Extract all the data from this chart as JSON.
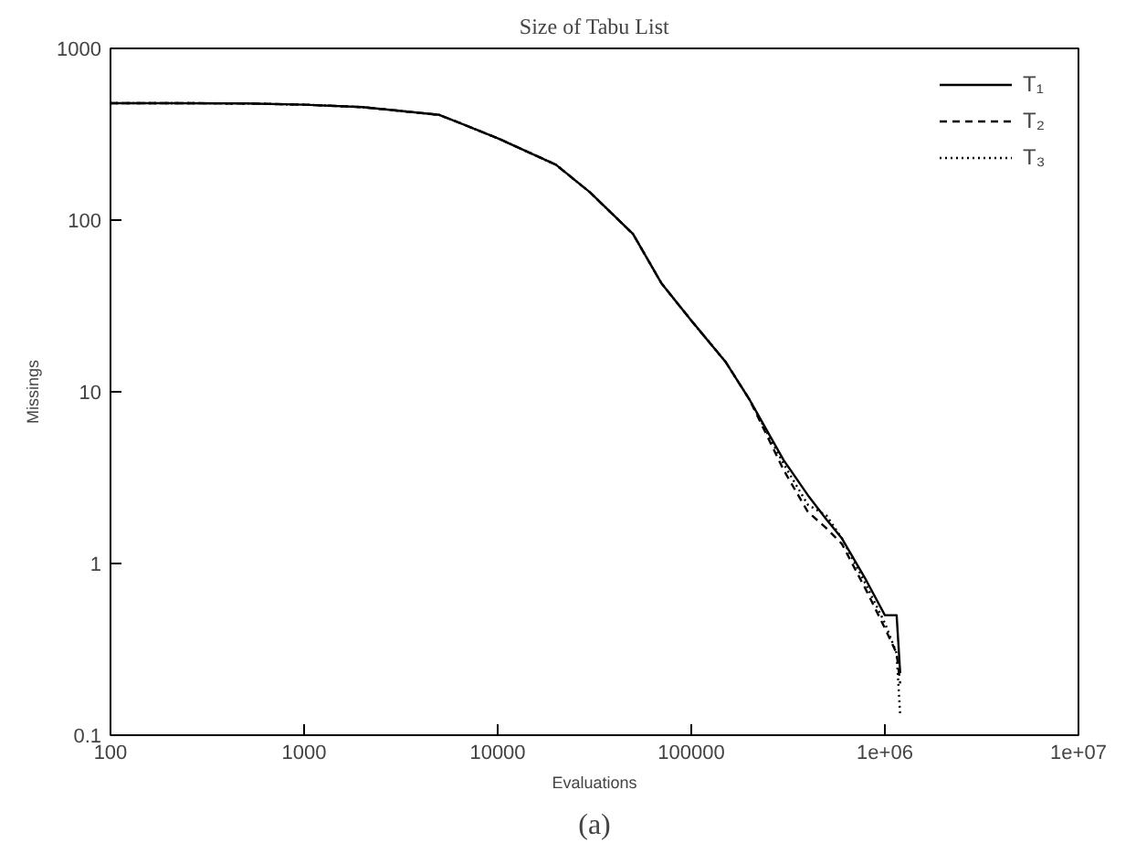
{
  "chart_data": {
    "type": "line",
    "title": "Size of Tabu List",
    "xlabel": "Evaluations",
    "ylabel": "Missings",
    "annotations": [
      "(a)"
    ],
    "log": "xy",
    "grid": false,
    "legend": "top right",
    "xlim": [
      100,
      10000000
    ],
    "ylim": [
      0.1,
      1000
    ],
    "xticks": [
      100,
      1000,
      10000,
      100000,
      {
        "value": 1000000,
        "label": "1e+06"
      },
      {
        "value": 10000000,
        "label": "1e+07"
      }
    ],
    "yticks": [
      0.1,
      1,
      10,
      100,
      1000
    ],
    "x": [
      100,
      200,
      500,
      1000,
      2000,
      5000,
      10000,
      20000,
      30000,
      50000,
      70000,
      100000,
      150000,
      200000,
      300000,
      400000,
      500000,
      600000,
      800000,
      1000000,
      1150000,
      1200000
    ],
    "series": [
      {
        "name": "T₁",
        "color": "#000000",
        "line_style": "solid",
        "values": [
          480,
          480,
          478,
          470,
          455,
          410,
          300,
          210,
          145,
          83,
          43,
          26,
          15,
          9,
          4.0,
          2.5,
          1.8,
          1.4,
          0.8,
          0.5,
          0.5,
          0.23
        ]
      },
      {
        "name": "T₂",
        "color": "#000000",
        "line_style": "dashed",
        "values": [
          480,
          480,
          478,
          470,
          455,
          410,
          300,
          210,
          145,
          83,
          43,
          26,
          15,
          9,
          3.5,
          2.0,
          1.6,
          1.3,
          0.7,
          0.42,
          0.3,
          0.2
        ]
      },
      {
        "name": "T₃",
        "color": "#000000",
        "line_style": "dotted",
        "values": [
          480,
          480,
          478,
          470,
          455,
          410,
          300,
          210,
          145,
          83,
          43,
          26,
          15,
          9,
          3.8,
          2.2,
          1.9,
          1.4,
          0.75,
          0.45,
          0.3,
          0.13
        ]
      }
    ]
  }
}
